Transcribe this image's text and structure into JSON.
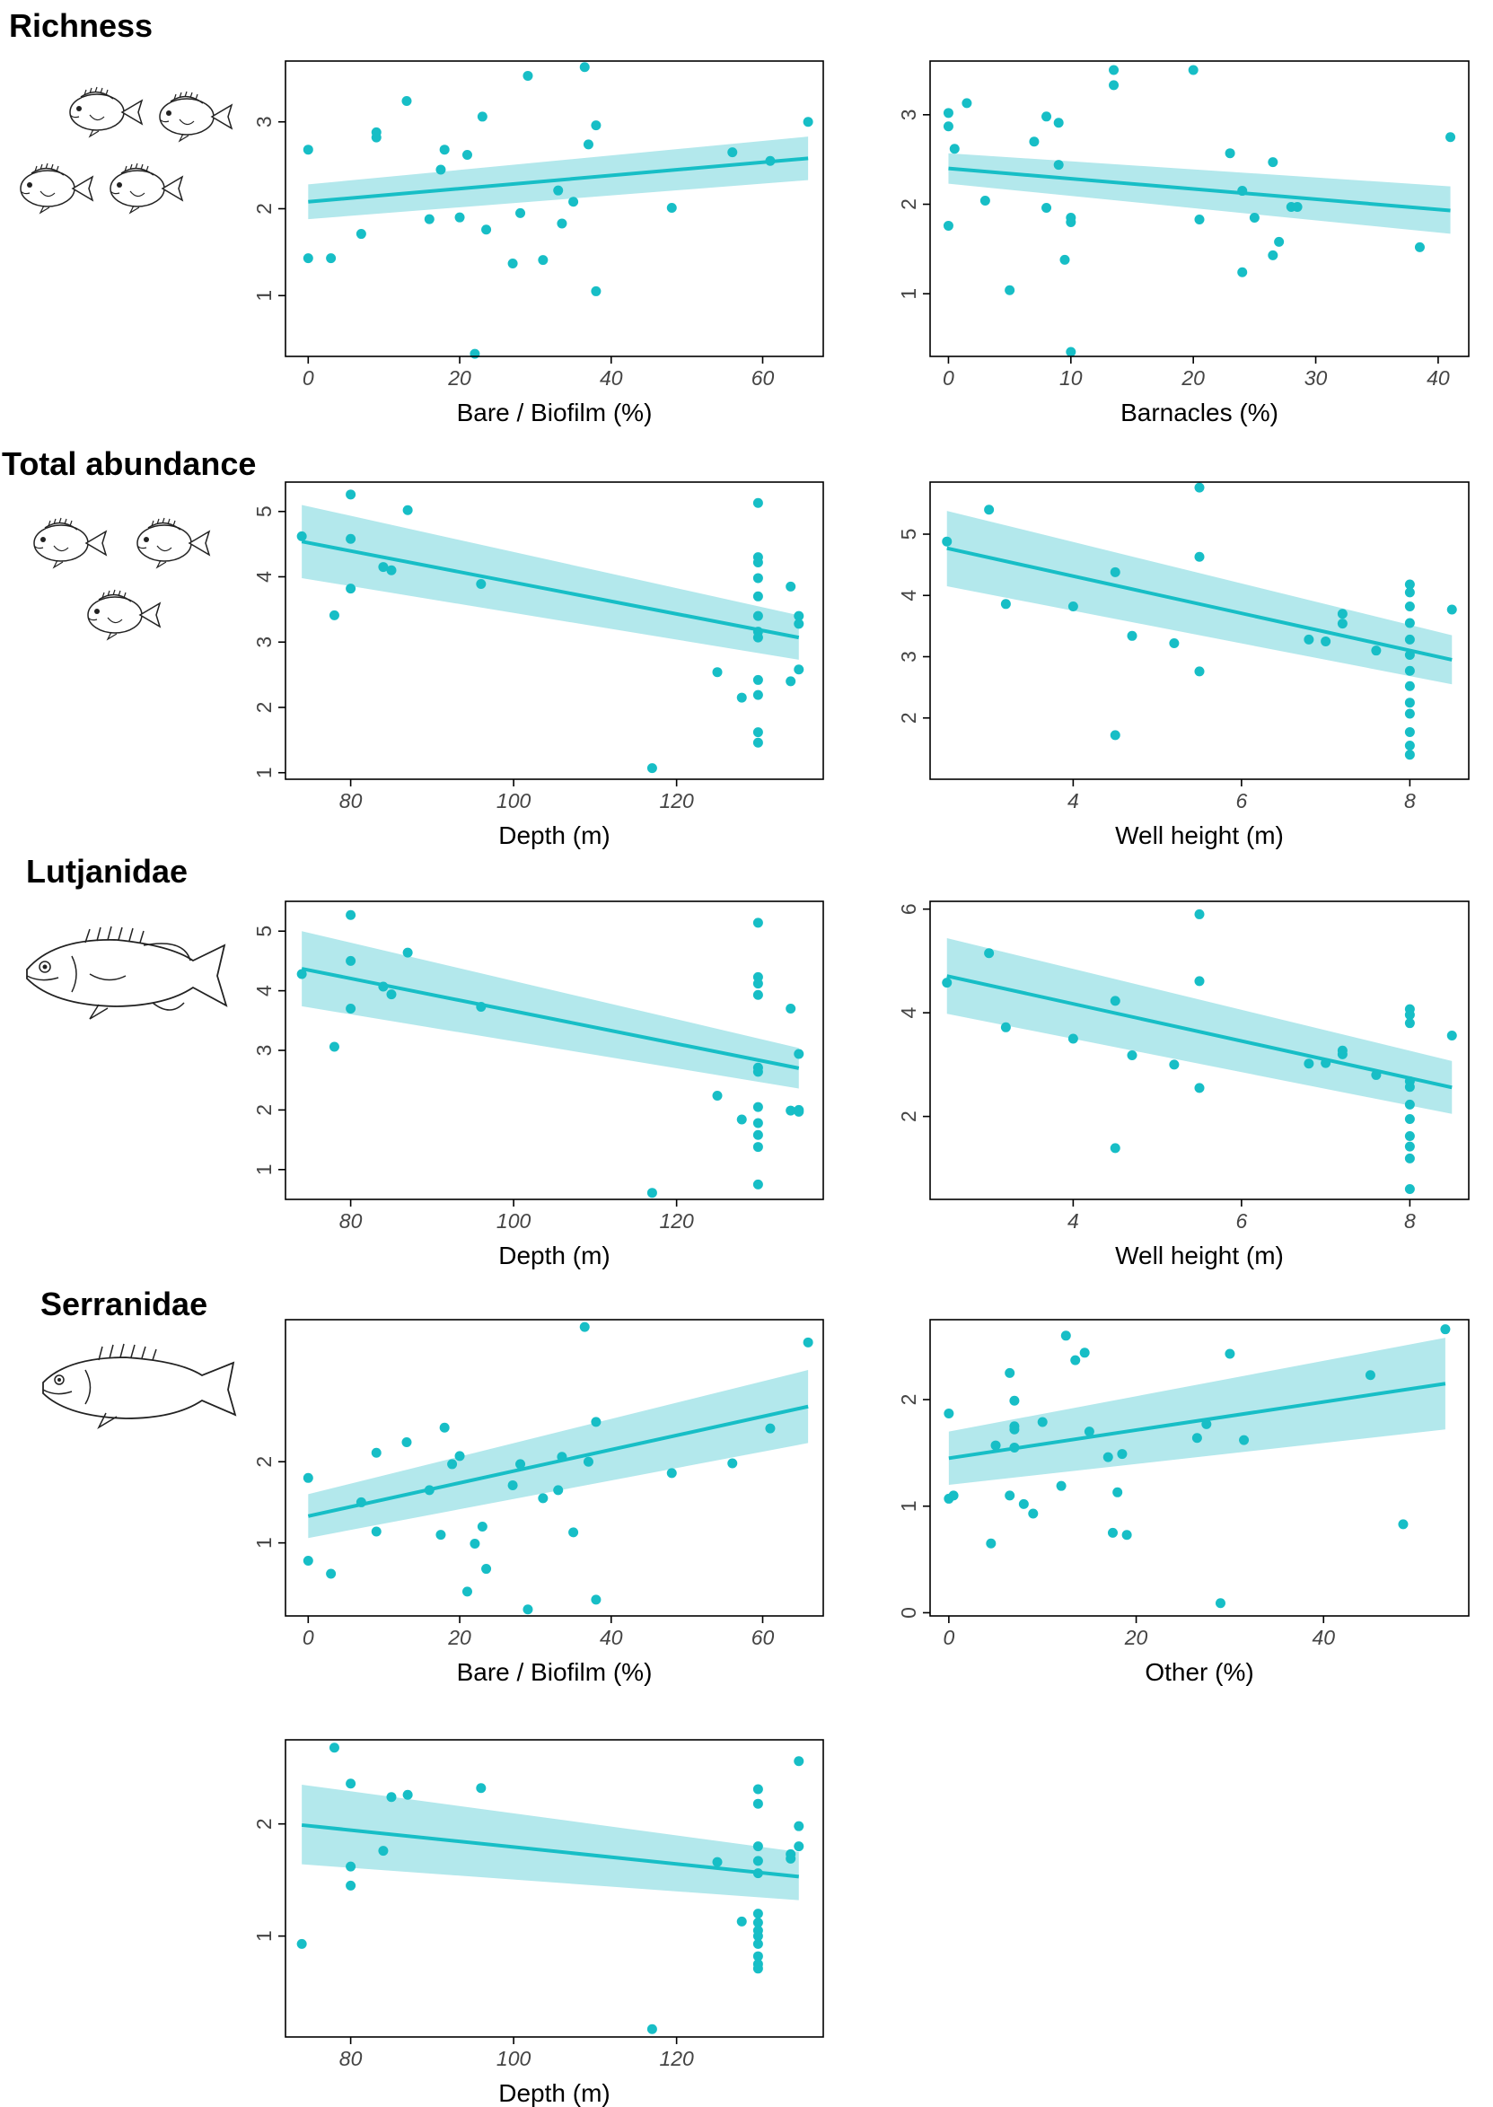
{
  "colors": {
    "accent": "#17BEC6",
    "band": "#B3E8EC",
    "axis": "#000000",
    "tick_text": "#444444"
  },
  "row_labels": {
    "richness": "Richness",
    "total_abundance": "Total abundance",
    "lutjanidae": "Lutjanidae",
    "serranidae": "Serranidae"
  },
  "chart_data": [
    {
      "type": "scatter",
      "title": "",
      "xlabel": "Bare / Biofilm (%)",
      "ylabel": "",
      "xlim": [
        -3,
        68
      ],
      "ylim": [
        0.3,
        3.7
      ],
      "xticks": [
        0,
        20,
        40,
        60
      ],
      "xtick_labels": [
        "0",
        "20",
        "40",
        "60"
      ],
      "yticks": [
        1,
        2,
        3
      ],
      "ytick_labels": [
        "1",
        "2",
        "3"
      ],
      "x": [
        0,
        0,
        3,
        7,
        9,
        9,
        13,
        16,
        17.5,
        18,
        20,
        21,
        22,
        23,
        23.5,
        27,
        28,
        29,
        31,
        33,
        33.5,
        35,
        36.5,
        37,
        38,
        38,
        48,
        56,
        61,
        66
      ],
      "y": [
        2.68,
        1.43,
        1.43,
        1.71,
        2.82,
        2.88,
        3.24,
        1.88,
        2.45,
        2.68,
        1.9,
        2.62,
        0.33,
        3.06,
        1.76,
        1.37,
        1.95,
        3.53,
        1.41,
        2.21,
        1.83,
        2.08,
        3.63,
        2.74,
        2.96,
        1.05,
        2.01,
        2.65,
        2.55,
        3.0
      ],
      "fit": {
        "x": [
          0,
          66
        ],
        "y": [
          2.08,
          2.58
        ],
        "lo": [
          1.88,
          2.33
        ],
        "hi": [
          2.28,
          2.83
        ]
      }
    },
    {
      "type": "scatter",
      "title": "",
      "xlabel": "Barnacles (%)",
      "ylabel": "",
      "xlim": [
        -1.5,
        42.5
      ],
      "ylim": [
        0.3,
        3.6
      ],
      "xticks": [
        0,
        10,
        20,
        30,
        40
      ],
      "xtick_labels": [
        "0",
        "10",
        "20",
        "30",
        "40"
      ],
      "yticks": [
        1,
        2,
        3
      ],
      "ytick_labels": [
        "1",
        "2",
        "3"
      ],
      "x": [
        0,
        0,
        0,
        0.5,
        1.5,
        3,
        5,
        7,
        8,
        8,
        9,
        9,
        9.5,
        10,
        10,
        10,
        13.5,
        13.5,
        20,
        20.5,
        23,
        24,
        24,
        25,
        26.5,
        26.5,
        27,
        28,
        28.5,
        38.5,
        41
      ],
      "y": [
        3.02,
        2.87,
        1.76,
        2.62,
        3.13,
        2.04,
        1.04,
        2.7,
        2.98,
        1.96,
        2.91,
        2.44,
        1.38,
        1.8,
        1.85,
        0.35,
        3.5,
        3.33,
        3.5,
        1.83,
        2.57,
        2.15,
        1.24,
        1.85,
        2.47,
        1.43,
        1.58,
        1.97,
        1.97,
        1.52,
        2.75
      ],
      "fit": {
        "x": [
          0,
          41
        ],
        "y": [
          2.4,
          1.93
        ],
        "lo": [
          2.23,
          1.67
        ],
        "hi": [
          2.57,
          2.2
        ]
      }
    },
    {
      "type": "scatter",
      "title": "",
      "xlabel": "Depth (m)",
      "ylabel": "",
      "xlim": [
        72,
        138
      ],
      "ylim": [
        0.9,
        5.45
      ],
      "xticks": [
        80,
        100,
        120
      ],
      "xtick_labels": [
        "80",
        "100",
        "120"
      ],
      "yticks": [
        1,
        2,
        3,
        4,
        5
      ],
      "ytick_labels": [
        "1",
        "2",
        "3",
        "4",
        "5"
      ],
      "x": [
        74,
        78,
        80,
        80,
        80,
        84,
        85,
        87,
        96,
        117,
        125,
        128,
        130,
        130,
        130,
        130,
        130,
        130,
        130,
        130,
        130,
        130,
        130,
        130,
        134,
        134,
        135,
        135,
        135
      ],
      "y": [
        4.62,
        3.41,
        5.26,
        4.58,
        3.82,
        4.15,
        4.1,
        5.02,
        3.89,
        1.07,
        2.54,
        2.15,
        5.13,
        4.3,
        4.22,
        3.98,
        3.7,
        3.4,
        3.16,
        3.07,
        2.42,
        2.19,
        1.62,
        1.46,
        3.85,
        2.4,
        3.4,
        3.28,
        2.58
      ],
      "fit": {
        "x": [
          74,
          135
        ],
        "y": [
          4.54,
          3.07
        ],
        "lo": [
          3.98,
          2.73
        ],
        "hi": [
          5.1,
          3.41
        ]
      }
    },
    {
      "type": "scatter",
      "title": "",
      "xlabel": "Well height (m)",
      "ylabel": "",
      "xlim": [
        2.3,
        8.7
      ],
      "ylim": [
        1.0,
        5.85
      ],
      "xticks": [
        4,
        6,
        8
      ],
      "xtick_labels": [
        "4",
        "6",
        "8"
      ],
      "yticks": [
        2,
        3,
        4,
        5
      ],
      "ytick_labels": [
        "2",
        "3",
        "4",
        "5"
      ],
      "x": [
        2.5,
        3,
        3.2,
        4,
        4.5,
        4.5,
        4.7,
        5.2,
        5.5,
        5.5,
        5.5,
        6.8,
        7,
        7.2,
        7.2,
        7.6,
        8,
        8,
        8,
        8,
        8,
        8,
        8,
        8,
        8,
        8,
        8,
        8,
        8,
        8.5
      ],
      "y": [
        4.88,
        5.4,
        3.86,
        3.82,
        4.38,
        1.72,
        3.34,
        3.22,
        5.76,
        4.63,
        2.76,
        3.28,
        3.25,
        3.7,
        3.54,
        3.1,
        4.18,
        4.05,
        3.82,
        3.55,
        3.28,
        3.03,
        2.77,
        2.52,
        2.25,
        2.07,
        1.77,
        1.55,
        1.4,
        3.77
      ],
      "fit": {
        "x": [
          2.5,
          8.5
        ],
        "y": [
          4.77,
          2.95
        ],
        "lo": [
          4.15,
          2.55
        ],
        "hi": [
          5.38,
          3.35
        ]
      }
    },
    {
      "type": "scatter",
      "title": "",
      "xlabel": "Depth (m)",
      "ylabel": "",
      "xlim": [
        72,
        138
      ],
      "ylim": [
        0.5,
        5.5
      ],
      "xticks": [
        80,
        100,
        120
      ],
      "xtick_labels": [
        "80",
        "100",
        "120"
      ],
      "yticks": [
        1,
        2,
        3,
        4,
        5
      ],
      "ytick_labels": [
        "1",
        "2",
        "3",
        "4",
        "5"
      ],
      "x": [
        74,
        78,
        80,
        80,
        80,
        84,
        85,
        87,
        96,
        117,
        125,
        128,
        130,
        130,
        130,
        130,
        130,
        130,
        130,
        130,
        130,
        130,
        130,
        134,
        134,
        135,
        135,
        135
      ],
      "y": [
        4.28,
        3.06,
        5.27,
        4.5,
        3.7,
        4.07,
        3.94,
        4.64,
        3.73,
        0.61,
        2.24,
        1.84,
        5.14,
        4.23,
        4.12,
        3.93,
        2.71,
        2.64,
        2.05,
        1.78,
        1.58,
        1.38,
        0.75,
        3.7,
        1.99,
        2.94,
        2.0,
        1.97
      ],
      "fit": {
        "x": [
          74,
          135
        ],
        "y": [
          4.37,
          2.7
        ],
        "lo": [
          3.74,
          2.36
        ],
        "hi": [
          5.0,
          3.04
        ]
      }
    },
    {
      "type": "scatter",
      "title": "",
      "xlabel": "Well height (m)",
      "ylabel": "",
      "xlim": [
        2.3,
        8.7
      ],
      "ylim": [
        0.4,
        6.15
      ],
      "xticks": [
        4,
        6,
        8
      ],
      "xtick_labels": [
        "4",
        "6",
        "8"
      ],
      "yticks": [
        2,
        4,
        6
      ],
      "ytick_labels": [
        "2",
        "4",
        "6"
      ],
      "x": [
        2.5,
        3,
        3.2,
        4,
        4.5,
        4.5,
        4.7,
        5.2,
        5.5,
        5.5,
        5.5,
        6.8,
        7,
        7.2,
        7.2,
        7.6,
        8,
        8,
        8,
        8,
        8,
        8,
        8,
        8,
        8,
        8,
        8,
        8.5
      ],
      "y": [
        4.58,
        5.15,
        3.72,
        3.5,
        4.23,
        1.39,
        3.18,
        3.0,
        5.9,
        4.61,
        2.55,
        3.02,
        3.03,
        3.27,
        3.2,
        2.8,
        4.07,
        3.96,
        3.8,
        2.68,
        2.57,
        2.23,
        1.95,
        1.62,
        1.42,
        1.19,
        0.6,
        3.56
      ],
      "fit": {
        "x": [
          2.5,
          8.5
        ],
        "y": [
          4.71,
          2.56
        ],
        "lo": [
          3.98,
          2.05
        ],
        "hi": [
          5.44,
          3.07
        ]
      }
    },
    {
      "type": "scatter",
      "title": "",
      "xlabel": "Bare / Biofilm (%)",
      "ylabel": "",
      "xlim": [
        -3,
        68
      ],
      "ylim": [
        0.1,
        3.75
      ],
      "xticks": [
        0,
        20,
        40,
        60
      ],
      "xtick_labels": [
        "0",
        "20",
        "40",
        "60"
      ],
      "yticks": [
        1,
        2
      ],
      "ytick_labels": [
        "1",
        "2"
      ],
      "x": [
        0,
        0,
        3,
        7,
        9,
        9,
        13,
        16,
        17.5,
        18,
        19,
        20,
        21,
        22,
        23,
        23.5,
        27,
        28,
        29,
        31,
        33,
        33.5,
        35,
        36.5,
        37,
        38,
        38,
        48,
        56,
        61,
        66
      ],
      "y": [
        1.8,
        0.78,
        0.62,
        1.5,
        1.14,
        2.11,
        2.24,
        1.65,
        1.1,
        2.42,
        1.97,
        2.07,
        0.4,
        0.99,
        1.2,
        0.68,
        1.71,
        1.97,
        0.18,
        1.55,
        1.65,
        2.06,
        1.13,
        3.66,
        2.0,
        2.49,
        0.3,
        1.86,
        1.98,
        2.41,
        3.47
      ],
      "fit": {
        "x": [
          0,
          66
        ],
        "y": [
          1.33,
          2.68
        ],
        "lo": [
          1.06,
          2.23
        ],
        "hi": [
          1.6,
          3.13
        ]
      }
    },
    {
      "type": "scatter",
      "title": "",
      "xlabel": "Other (%)",
      "ylabel": "",
      "xlim": [
        -2,
        55.5
      ],
      "ylim": [
        -0.03,
        2.75
      ],
      "xticks": [
        0,
        20,
        40
      ],
      "xtick_labels": [
        "0",
        "20",
        "40"
      ],
      "yticks": [
        0,
        1,
        2
      ],
      "ytick_labels": [
        "0",
        "1",
        "2"
      ],
      "x": [
        0,
        0,
        0.5,
        4.5,
        5,
        6.5,
        6.5,
        7,
        7,
        7,
        7,
        8,
        9,
        10,
        12,
        12.5,
        13.5,
        14.5,
        15,
        17,
        17.5,
        18,
        18.5,
        19,
        26.5,
        27.5,
        29,
        30,
        31.5,
        45,
        48.5,
        53
      ],
      "y": [
        1.87,
        1.07,
        1.1,
        0.65,
        1.57,
        2.25,
        1.1,
        1.99,
        1.75,
        1.72,
        1.55,
        1.02,
        0.93,
        1.79,
        1.19,
        2.6,
        2.37,
        2.44,
        1.7,
        1.46,
        0.75,
        1.13,
        1.49,
        0.73,
        1.64,
        1.77,
        0.09,
        2.43,
        1.62,
        2.23,
        0.83,
        2.66
      ],
      "fit": {
        "x": [
          0,
          53
        ],
        "y": [
          1.45,
          2.15
        ],
        "lo": [
          1.2,
          1.72
        ],
        "hi": [
          1.7,
          2.58
        ]
      }
    },
    {
      "type": "scatter",
      "title": "",
      "xlabel": "Depth (m)",
      "ylabel": "",
      "xlim": [
        72,
        138
      ],
      "ylim": [
        0.1,
        2.75
      ],
      "xticks": [
        80,
        100,
        120
      ],
      "xtick_labels": [
        "80",
        "100",
        "120"
      ],
      "yticks": [
        1,
        2
      ],
      "ytick_labels": [
        "1",
        "2"
      ],
      "x": [
        74,
        78,
        80,
        80,
        80,
        84,
        85,
        87,
        96,
        117,
        125,
        128,
        130,
        130,
        130,
        130,
        130,
        130,
        130,
        130,
        130,
        130,
        130,
        130,
        130,
        134,
        134,
        135,
        135,
        135
      ],
      "y": [
        0.93,
        2.68,
        2.36,
        1.62,
        1.45,
        1.76,
        2.24,
        2.26,
        2.32,
        0.17,
        1.66,
        1.13,
        2.31,
        2.18,
        1.8,
        1.67,
        1.56,
        1.2,
        1.12,
        1.05,
        1.0,
        0.93,
        0.82,
        0.75,
        0.71,
        1.73,
        1.69,
        2.56,
        1.98,
        1.8
      ],
      "fit": {
        "x": [
          74,
          135
        ],
        "y": [
          1.99,
          1.53
        ],
        "lo": [
          1.64,
          1.32
        ],
        "hi": [
          2.35,
          1.75
        ]
      }
    }
  ]
}
